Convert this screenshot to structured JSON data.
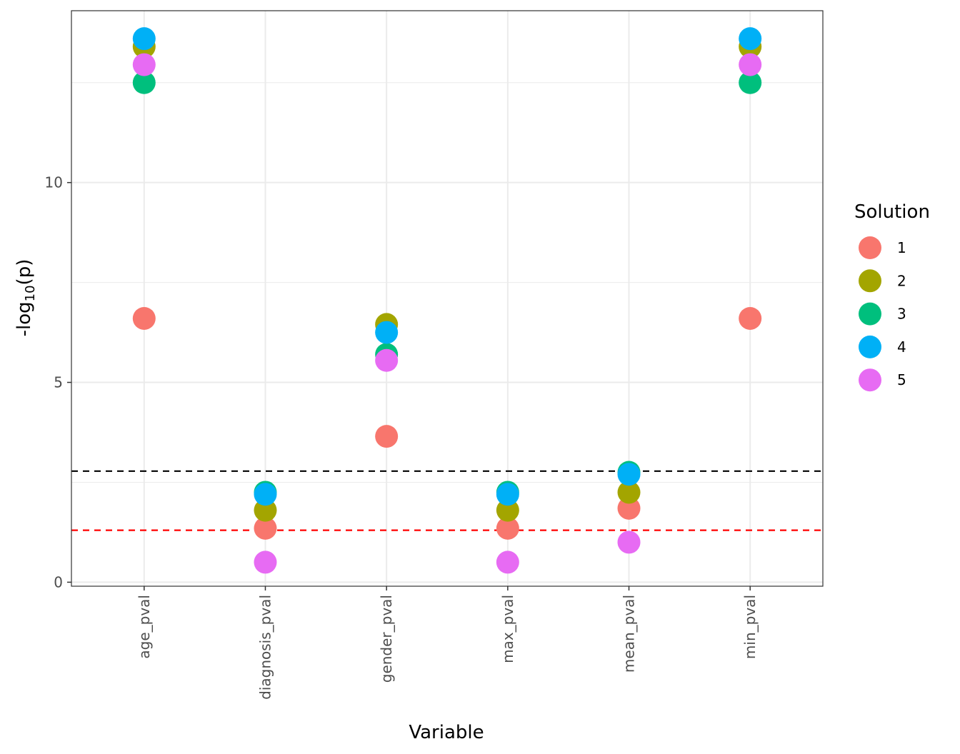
{
  "chart_data": {
    "type": "scatter",
    "title": "",
    "xlabel": "Variable",
    "ylabel_prefix": "-log",
    "ylabel_sub": "10",
    "ylabel_suffix": "(p)",
    "categories": [
      "age_pval",
      "diagnosis_pval",
      "gender_pval",
      "max_pval",
      "mean_pval",
      "min_pval"
    ],
    "ylim": [
      -0.1,
      14.3
    ],
    "yticks": [
      0,
      5,
      10
    ],
    "ytick_labels": [
      "0",
      "5",
      "10"
    ],
    "grid": true,
    "legend": {
      "title": "Solution",
      "position": "right"
    },
    "series": [
      {
        "name": "1",
        "color": "#F8766D",
        "values": [
          6.6,
          1.35,
          3.65,
          1.35,
          1.85,
          6.6
        ]
      },
      {
        "name": "2",
        "color": "#A3A500",
        "values": [
          13.4,
          1.8,
          6.45,
          1.8,
          2.25,
          13.4
        ]
      },
      {
        "name": "3",
        "color": "#00BF7D",
        "values": [
          12.5,
          2.25,
          5.7,
          2.25,
          2.75,
          12.5
        ]
      },
      {
        "name": "4",
        "color": "#00B0F6",
        "values": [
          13.6,
          2.2,
          6.25,
          2.2,
          2.7,
          13.6
        ]
      },
      {
        "name": "5",
        "color": "#E76BF3",
        "values": [
          12.95,
          0.5,
          5.55,
          0.5,
          1.0,
          12.95
        ]
      }
    ],
    "reference_lines": [
      {
        "name": "black-threshold",
        "value": 2.78,
        "color": "#000000",
        "style": "dashed"
      },
      {
        "name": "red-threshold",
        "value": 1.3,
        "color": "#FF0000",
        "style": "dashed"
      }
    ]
  }
}
